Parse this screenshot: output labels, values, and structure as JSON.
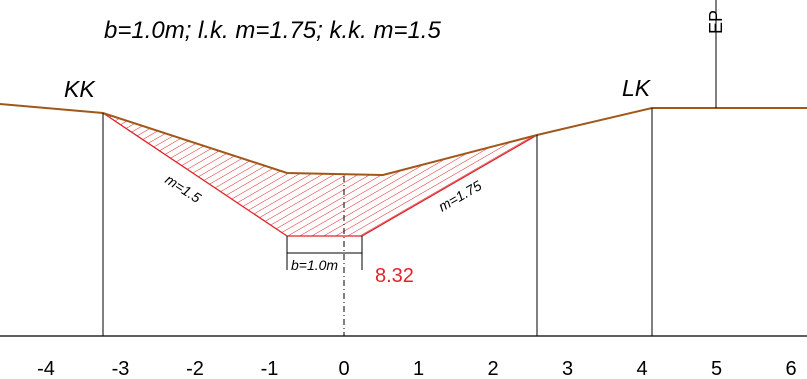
{
  "header": {
    "formula": "b=1.0m; l.k. m=1.75; k.k. m=1.5"
  },
  "labels": {
    "left_edge": "KK",
    "right_edge": "LK",
    "datum": "EP",
    "left_slope": "m=1.5",
    "right_slope": "m=1.75",
    "bottom_width": "b=1.0m",
    "area": "8.32"
  },
  "axis": {
    "ticks": [
      "-4",
      "-3",
      "-2",
      "-1",
      "0",
      "1",
      "2",
      "3",
      "4",
      "5",
      "6"
    ]
  },
  "colors": {
    "ground_line": "#a0581a",
    "hatch": "#e0242a",
    "area_text": "#e0242a",
    "ink": "#000000"
  }
}
